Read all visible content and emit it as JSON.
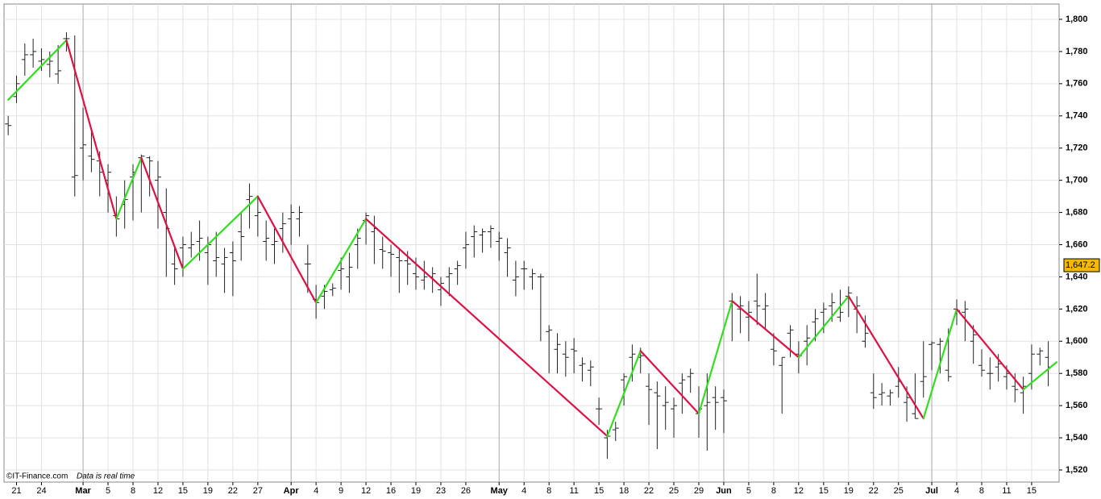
{
  "chart_data": {
    "type": "ohlc",
    "xlim": [
      -0.5,
      126.3
    ],
    "ylim": [
      1512.5,
      1809.5
    ],
    "yticks": [
      {
        "value": 1520,
        "label": "1,520"
      },
      {
        "value": 1540,
        "label": "1,540"
      },
      {
        "value": 1560,
        "label": "1,560"
      },
      {
        "value": 1580,
        "label": "1,580"
      },
      {
        "value": 1600,
        "label": "1,600"
      },
      {
        "value": 1620,
        "label": "1,620"
      },
      {
        "value": 1640,
        "label": "1,640"
      },
      {
        "value": 1660,
        "label": "1,660"
      },
      {
        "value": 1680,
        "label": "1,680"
      },
      {
        "value": 1700,
        "label": "1,700"
      },
      {
        "value": 1720,
        "label": "1,720"
      },
      {
        "value": 1740,
        "label": "1,740"
      },
      {
        "value": 1760,
        "label": "1,760"
      },
      {
        "value": 1780,
        "label": "1,780"
      },
      {
        "value": 1800,
        "label": "1,800"
      }
    ],
    "xticks": [
      {
        "value": 1,
        "label": "21"
      },
      {
        "value": 4,
        "label": "24"
      },
      {
        "value": 9,
        "label": "Mar"
      },
      {
        "value": 12,
        "label": "5"
      },
      {
        "value": 15,
        "label": "8"
      },
      {
        "value": 18,
        "label": "12"
      },
      {
        "value": 21,
        "label": "15"
      },
      {
        "value": 24,
        "label": "19"
      },
      {
        "value": 27,
        "label": "22"
      },
      {
        "value": 30,
        "label": "27"
      },
      {
        "value": 34,
        "label": "Apr"
      },
      {
        "value": 37,
        "label": "4"
      },
      {
        "value": 40,
        "label": "9"
      },
      {
        "value": 43,
        "label": "12"
      },
      {
        "value": 46,
        "label": "16"
      },
      {
        "value": 49,
        "label": "19"
      },
      {
        "value": 52,
        "label": "23"
      },
      {
        "value": 55,
        "label": "26"
      },
      {
        "value": 59,
        "label": "May"
      },
      {
        "value": 62,
        "label": "4"
      },
      {
        "value": 65,
        "label": "8"
      },
      {
        "value": 68,
        "label": "11"
      },
      {
        "value": 71,
        "label": "15"
      },
      {
        "value": 74,
        "label": "18"
      },
      {
        "value": 77,
        "label": "22"
      },
      {
        "value": 80,
        "label": "25"
      },
      {
        "value": 83,
        "label": "29"
      },
      {
        "value": 86,
        "label": "Jun"
      },
      {
        "value": 89,
        "label": "5"
      },
      {
        "value": 92,
        "label": "8"
      },
      {
        "value": 95,
        "label": "12"
      },
      {
        "value": 98,
        "label": "15"
      },
      {
        "value": 101,
        "label": "19"
      },
      {
        "value": 104,
        "label": "22"
      },
      {
        "value": 107,
        "label": "25"
      },
      {
        "value": 111,
        "label": "Jul"
      },
      {
        "value": 114,
        "label": "4"
      },
      {
        "value": 117,
        "label": "8"
      },
      {
        "value": 120,
        "label": "11"
      },
      {
        "value": 123,
        "label": "15"
      }
    ],
    "grid": true,
    "bar_color": "#222222",
    "x": [
      0,
      1,
      2,
      3,
      4,
      5,
      6,
      7,
      8,
      9,
      10,
      11,
      12,
      13,
      14,
      15,
      16,
      17,
      18,
      19,
      20,
      21,
      22,
      23,
      24,
      25,
      26,
      27,
      28,
      29,
      30,
      31,
      32,
      33,
      34,
      35,
      36,
      37,
      38,
      39,
      40,
      41,
      42,
      43,
      44,
      45,
      46,
      47,
      48,
      49,
      50,
      51,
      52,
      53,
      54,
      55,
      56,
      57,
      58,
      59,
      60,
      61,
      62,
      63,
      64,
      65,
      66,
      67,
      68,
      69,
      70,
      71,
      72,
      73,
      74,
      75,
      76,
      77,
      78,
      79,
      80,
      81,
      82,
      83,
      84,
      85,
      86,
      87,
      88,
      89,
      90,
      91,
      92,
      93,
      94,
      95,
      96,
      97,
      98,
      99,
      100,
      101,
      102,
      103,
      104,
      105,
      106,
      107,
      108,
      109,
      110,
      111,
      112,
      113,
      114,
      115,
      116,
      117,
      118,
      119,
      120,
      121,
      122,
      123,
      124,
      125
    ],
    "ohlc": [
      [
        1735,
        1740,
        1728,
        1734
      ],
      [
        1752,
        1765,
        1748,
        1760
      ],
      [
        1775,
        1785,
        1765,
        1778
      ],
      [
        1778,
        1788,
        1770,
        1780
      ],
      [
        1774,
        1782,
        1768,
        1775
      ],
      [
        1772,
        1780,
        1764,
        1774
      ],
      [
        1766,
        1784,
        1760,
        1768
      ],
      [
        1788,
        1792,
        1780,
        1788
      ],
      [
        1702,
        1790,
        1690,
        1703
      ],
      [
        1720,
        1745,
        1700,
        1722
      ],
      [
        1715,
        1730,
        1705,
        1713
      ],
      [
        1712,
        1718,
        1690,
        1705
      ],
      [
        1700,
        1710,
        1680,
        1705
      ],
      [
        1678,
        1690,
        1665,
        1676
      ],
      [
        1685,
        1700,
        1670,
        1688
      ],
      [
        1702,
        1710,
        1675,
        1705
      ],
      [
        1714,
        1716,
        1680,
        1715
      ],
      [
        1714,
        1715,
        1690,
        1712
      ],
      [
        1700,
        1712,
        1670,
        1702
      ],
      [
        1680,
        1695,
        1640,
        1670
      ],
      [
        1648,
        1660,
        1635,
        1645
      ],
      [
        1658,
        1665,
        1640,
        1660
      ],
      [
        1658,
        1668,
        1652,
        1660
      ],
      [
        1662,
        1675,
        1650,
        1664
      ],
      [
        1655,
        1665,
        1635,
        1660
      ],
      [
        1650,
        1668,
        1640,
        1652
      ],
      [
        1648,
        1658,
        1630,
        1652
      ],
      [
        1655,
        1662,
        1628,
        1650
      ],
      [
        1668,
        1680,
        1650,
        1665
      ],
      [
        1688,
        1698,
        1670,
        1690
      ],
      [
        1678,
        1690,
        1665,
        1680
      ],
      [
        1662,
        1675,
        1650,
        1664
      ],
      [
        1660,
        1670,
        1648,
        1662
      ],
      [
        1670,
        1680,
        1655,
        1673
      ],
      [
        1676,
        1685,
        1660,
        1680
      ],
      [
        1676,
        1684,
        1665,
        1680
      ],
      [
        1648,
        1660,
        1630,
        1648
      ],
      [
        1626,
        1635,
        1614,
        1624
      ],
      [
        1628,
        1635,
        1620,
        1631
      ],
      [
        1632,
        1636,
        1628,
        1633
      ],
      [
        1644,
        1652,
        1632,
        1645
      ],
      [
        1640,
        1655,
        1630,
        1646
      ],
      [
        1660,
        1670,
        1645,
        1664
      ],
      [
        1675,
        1680,
        1660,
        1678
      ],
      [
        1668,
        1678,
        1648,
        1670
      ],
      [
        1657,
        1665,
        1645,
        1656
      ],
      [
        1655,
        1660,
        1640,
        1654
      ],
      [
        1652,
        1658,
        1630,
        1650
      ],
      [
        1650,
        1656,
        1635,
        1648
      ],
      [
        1642,
        1652,
        1632,
        1640
      ],
      [
        1638,
        1650,
        1632,
        1640
      ],
      [
        1640,
        1646,
        1630,
        1642
      ],
      [
        1632,
        1640,
        1622,
        1636
      ],
      [
        1640,
        1646,
        1628,
        1642
      ],
      [
        1645,
        1650,
        1635,
        1647
      ],
      [
        1658,
        1668,
        1645,
        1660
      ],
      [
        1665,
        1672,
        1652,
        1668
      ],
      [
        1666,
        1670,
        1655,
        1668
      ],
      [
        1668,
        1672,
        1658,
        1670
      ],
      [
        1662,
        1668,
        1650,
        1664
      ],
      [
        1655,
        1664,
        1640,
        1658
      ],
      [
        1638,
        1650,
        1628,
        1640
      ],
      [
        1645,
        1650,
        1632,
        1645
      ],
      [
        1640,
        1645,
        1632,
        1642
      ],
      [
        1640,
        1642,
        1600,
        1640
      ],
      [
        1606,
        1610,
        1580,
        1607
      ],
      [
        1595,
        1605,
        1580,
        1598
      ],
      [
        1592,
        1600,
        1578,
        1590
      ],
      [
        1595,
        1602,
        1580,
        1594
      ],
      [
        1585,
        1590,
        1575,
        1586
      ],
      [
        1582,
        1588,
        1572,
        1584
      ],
      [
        1558,
        1565,
        1548,
        1558
      ],
      [
        1540,
        1545,
        1527,
        1541
      ],
      [
        1545,
        1550,
        1538,
        1546
      ],
      [
        1576,
        1580,
        1560,
        1578
      ],
      [
        1590,
        1598,
        1575,
        1592
      ],
      [
        1590,
        1596,
        1580,
        1591
      ],
      [
        1572,
        1580,
        1548,
        1570
      ],
      [
        1568,
        1575,
        1533,
        1566
      ],
      [
        1560,
        1572,
        1545,
        1562
      ],
      [
        1558,
        1565,
        1540,
        1560
      ],
      [
        1574,
        1580,
        1555,
        1576
      ],
      [
        1578,
        1583,
        1568,
        1580
      ],
      [
        1555,
        1572,
        1540,
        1558
      ],
      [
        1560,
        1580,
        1532,
        1562
      ],
      [
        1565,
        1572,
        1545,
        1562
      ],
      [
        1565,
        1570,
        1543,
        1563
      ],
      [
        1625,
        1630,
        1600,
        1624
      ],
      [
        1620,
        1628,
        1605,
        1622
      ],
      [
        1615,
        1625,
        1600,
        1618
      ],
      [
        1625,
        1642,
        1610,
        1622
      ],
      [
        1620,
        1630,
        1608,
        1622
      ],
      [
        1595,
        1605,
        1585,
        1594
      ],
      [
        1585,
        1590,
        1555,
        1590
      ],
      [
        1605,
        1610,
        1590,
        1607
      ],
      [
        1592,
        1600,
        1580,
        1591
      ],
      [
        1600,
        1610,
        1585,
        1602
      ],
      [
        1612,
        1620,
        1600,
        1614
      ],
      [
        1618,
        1624,
        1605,
        1620
      ],
      [
        1622,
        1630,
        1612,
        1624
      ],
      [
        1615,
        1632,
        1612,
        1618
      ],
      [
        1628,
        1634,
        1615,
        1630
      ],
      [
        1620,
        1628,
        1605,
        1622
      ],
      [
        1600,
        1616,
        1596,
        1605
      ],
      [
        1568,
        1580,
        1558,
        1565
      ],
      [
        1567,
        1574,
        1560,
        1568
      ],
      [
        1566,
        1570,
        1560,
        1568
      ],
      [
        1572,
        1584,
        1565,
        1575
      ],
      [
        1562,
        1572,
        1550,
        1565
      ],
      [
        1555,
        1580,
        1552,
        1552
      ],
      [
        1575,
        1600,
        1565,
        1578
      ],
      [
        1598,
        1600,
        1582,
        1599
      ],
      [
        1598,
        1602,
        1580,
        1600
      ],
      [
        1582,
        1608,
        1575,
        1578
      ],
      [
        1620,
        1626,
        1610,
        1619
      ],
      [
        1618,
        1625,
        1600,
        1620
      ],
      [
        1600,
        1610,
        1586,
        1604
      ],
      [
        1585,
        1595,
        1578,
        1582
      ],
      [
        1580,
        1590,
        1570,
        1580
      ],
      [
        1584,
        1592,
        1575,
        1586
      ],
      [
        1578,
        1585,
        1570,
        1580
      ],
      [
        1572,
        1580,
        1562,
        1570
      ],
      [
        1568,
        1578,
        1555,
        1572
      ],
      [
        1580,
        1598,
        1570,
        1592
      ],
      [
        1592,
        1596,
        1585,
        1594
      ],
      [
        1590,
        1600,
        1572,
        1584
      ]
    ],
    "zigzag": {
      "x": [
        0,
        7,
        13,
        16,
        21,
        30,
        37,
        43,
        72,
        76,
        83,
        87,
        95,
        101,
        110,
        114,
        122,
        126
      ],
      "values": [
        1750,
        1787,
        1676,
        1714,
        1645,
        1690,
        1624,
        1676,
        1541,
        1594,
        1555,
        1625,
        1590,
        1628,
        1552,
        1620,
        1570,
        1587
      ],
      "up_color": "#33dd22",
      "down_color": "#dd1144"
    },
    "last_price": {
      "value": 1647.2,
      "label": "1,647.2"
    },
    "credit": "©IT-Finance.com",
    "note": "Data is real time"
  }
}
